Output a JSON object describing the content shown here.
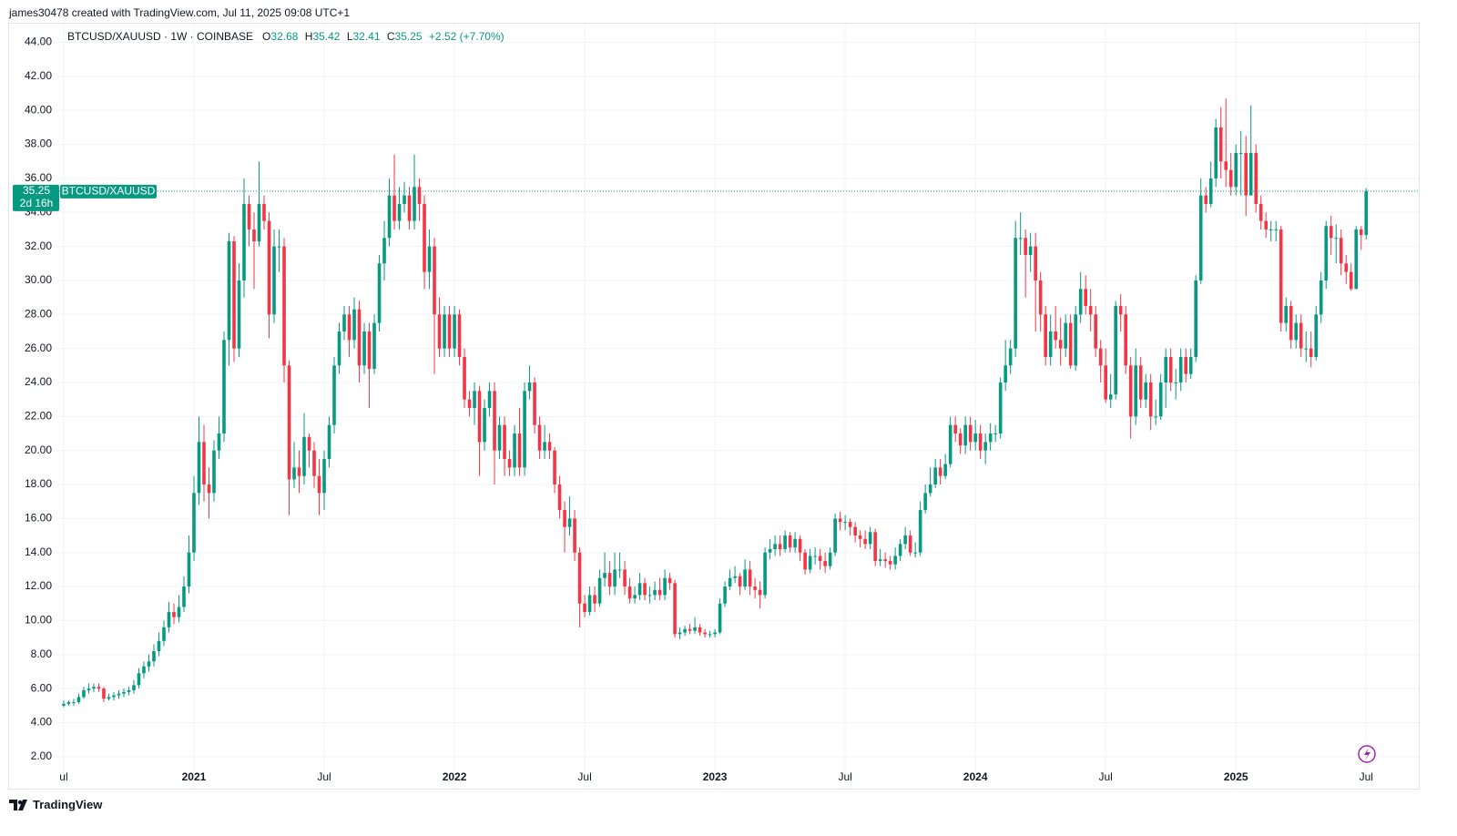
{
  "header": {
    "text": "james30478 created with TradingView.com, Jul 11, 2025 09:08 UTC+1"
  },
  "footer": {
    "brand": "TradingView"
  },
  "chart_data": {
    "type": "candlestick",
    "title": "BTCUSD/XAUUSD · 1W · COINBASE",
    "ohlc_labels": [
      "O",
      "H",
      "L",
      "C"
    ],
    "change_label": "+2.52 (+7.70%)",
    "price_tag": "BTCUSD/XAUUSD",
    "countdown": "2d 16h",
    "up_color": "#089981",
    "down_color": "#f23645",
    "grid": true,
    "xlim": [
      -10.9,
      270.5
    ],
    "xticks": [
      {
        "value": 0,
        "label": "ul"
      },
      {
        "value": 26,
        "label": "2021"
      },
      {
        "value": 52,
        "label": "Jul"
      },
      {
        "value": 78,
        "label": "2022"
      },
      {
        "value": 104,
        "label": "Jul"
      },
      {
        "value": 130,
        "label": "2023"
      },
      {
        "value": 156,
        "label": "Jul"
      },
      {
        "value": 182,
        "label": "2024"
      },
      {
        "value": 208,
        "label": "Jul"
      },
      {
        "value": 234,
        "label": "2025"
      },
      {
        "value": 260,
        "label": "Jul"
      }
    ],
    "ylim": [
      1.4,
      45.1
    ],
    "yticks": [
      {
        "value": 2,
        "label": "2.00"
      },
      {
        "value": 4,
        "label": "4.00"
      },
      {
        "value": 6,
        "label": "6.00"
      },
      {
        "value": 8,
        "label": "8.00"
      },
      {
        "value": 10,
        "label": "10.00"
      },
      {
        "value": 12,
        "label": "12.00"
      },
      {
        "value": 14,
        "label": "14.00"
      },
      {
        "value": 16,
        "label": "16.00"
      },
      {
        "value": 18,
        "label": "18.00"
      },
      {
        "value": 20,
        "label": "20.00"
      },
      {
        "value": 22,
        "label": "22.00"
      },
      {
        "value": 24,
        "label": "24.00"
      },
      {
        "value": 26,
        "label": "26.00"
      },
      {
        "value": 28,
        "label": "28.00"
      },
      {
        "value": 30,
        "label": "30.00"
      },
      {
        "value": 32,
        "label": "32.00"
      },
      {
        "value": 34,
        "label": "34.00"
      },
      {
        "value": 36,
        "label": "36.00"
      },
      {
        "value": 38,
        "label": "38.00"
      },
      {
        "value": 40,
        "label": "40.00"
      },
      {
        "value": 42,
        "label": "42.00"
      },
      {
        "value": 44,
        "label": "44.00"
      }
    ],
    "open": [
      5.0,
      5.1,
      5.2,
      5.2,
      5.5,
      5.9,
      6.0,
      6.1,
      6.0,
      5.4,
      5.5,
      5.6,
      5.7,
      5.8,
      5.9,
      6.2,
      6.9,
      7.3,
      7.6,
      8.2,
      8.8,
      9.6,
      10.5,
      10.2,
      10.8,
      12.0,
      14.0,
      17.5,
      20.5,
      18.0,
      17.5,
      20.0,
      21.0,
      26.5,
      32.3,
      26.0,
      30.0,
      34.5,
      33.0,
      32.3,
      34.5,
      33.5,
      28.0,
      32.0,
      32.0,
      25.0,
      18.3,
      19.0,
      18.5,
      20.8,
      20.0,
      18.5,
      17.5,
      19.5,
      21.5,
      25.0,
      27.0,
      28.0,
      26.5,
      28.3,
      25.0,
      27.0,
      24.8,
      27.5,
      31.0,
      32.5,
      35.0,
      33.5,
      34.5,
      35.0,
      33.5,
      35.5,
      34.5,
      30.5,
      32.0,
      28.0,
      26.0,
      28.0,
      26.0,
      28.0,
      25.5,
      23.0,
      22.5,
      23.5,
      20.5,
      22.5,
      23.5,
      20.0,
      21.5,
      19.5,
      19.0,
      21.0,
      19.0,
      23.5,
      24.0,
      21.5,
      20.0,
      20.5,
      20.0,
      18.0,
      16.5,
      15.5,
      16.0,
      14.0,
      11.0,
      10.5,
      11.5,
      11.0,
      12.5,
      12.8,
      12.0,
      13.0,
      13.0,
      12.0,
      11.3,
      11.5,
      12.2,
      11.5,
      11.5,
      11.8,
      11.5,
      12.5,
      12.2,
      9.2,
      9.3,
      9.5,
      9.4,
      9.6,
      9.3,
      9.2,
      9.2,
      9.3,
      11.0,
      12.0,
      12.5,
      12.6,
      12.0,
      13.0,
      12.0,
      11.8,
      11.5,
      14.0,
      14.2,
      14.5,
      14.2,
      15.0,
      14.3,
      14.8,
      14.0,
      13.0,
      13.8,
      13.8,
      13.5,
      13.2,
      14.0,
      16.0,
      15.8,
      15.8,
      15.5,
      15.0,
      14.8,
      14.5,
      15.2,
      13.5,
      13.6,
      13.5,
      13.3,
      13.8,
      14.5,
      15.0,
      14.0,
      14.0,
      16.5,
      17.5,
      18.0,
      19.0,
      18.5,
      19.2,
      21.5,
      21.0,
      20.3,
      21.5,
      20.5,
      21.0,
      20.0,
      20.5,
      21.0,
      21.0,
      24.0,
      25.0,
      26.0,
      32.5,
      32.5,
      31.5,
      32.0,
      30.0,
      28.0,
      25.5,
      27.0,
      26.5,
      26.0,
      27.5,
      25.0,
      28.0,
      29.5,
      28.5,
      28.0,
      26.0,
      25.0,
      23.0,
      23.3,
      28.5,
      28.0,
      25.0,
      22.0,
      25.0,
      23.0,
      24.0,
      22.0,
      22.0,
      24.0,
      25.5,
      24.0,
      24.0,
      25.5,
      24.5,
      25.5,
      30.0,
      35.0,
      34.5,
      36.0,
      39.0,
      37.0,
      36.5,
      35.5,
      37.5,
      37.5,
      35.0,
      37.5,
      34.5,
      33.5,
      33.0,
      33.0,
      33.0,
      27.5,
      28.5,
      26.5,
      27.5,
      26.0,
      26.0,
      25.5,
      28.0,
      30.0,
      33.2,
      32.5,
      32.5,
      31.0,
      30.5,
      29.5,
      33.0,
      32.68
    ],
    "high": [
      5.3,
      5.3,
      5.4,
      5.7,
      6.1,
      6.3,
      6.3,
      6.3,
      6.1,
      5.7,
      5.8,
      5.9,
      6.0,
      6.1,
      6.5,
      7.2,
      7.6,
      8.0,
      8.6,
      9.3,
      10.0,
      11.1,
      11.0,
      11.5,
      12.6,
      15.0,
      18.5,
      22.0,
      21.5,
      19.0,
      20.6,
      22.0,
      27.0,
      32.8,
      32.6,
      31.0,
      36.0,
      35.0,
      34.0,
      37.0,
      35.0,
      34.0,
      33.0,
      33.0,
      32.5,
      25.3,
      20.5,
      20.0,
      22.2,
      21.0,
      20.5,
      19.5,
      20.0,
      22.0,
      25.5,
      27.5,
      28.5,
      28.5,
      29.0,
      28.8,
      27.5,
      27.5,
      28.0,
      31.5,
      33.5,
      36.0,
      37.4,
      35.5,
      35.8,
      35.5,
      37.4,
      36.0,
      35.0,
      33.0,
      32.5,
      29.0,
      28.5,
      28.5,
      28.5,
      28.3,
      26.0,
      23.5,
      24.0,
      23.8,
      23.0,
      24.0,
      24.0,
      22.0,
      22.0,
      20.0,
      21.5,
      22.5,
      24.0,
      25.0,
      24.3,
      22.0,
      21.5,
      21.0,
      20.2,
      18.5,
      17.0,
      17.3,
      16.5,
      14.3,
      11.5,
      12.0,
      12.0,
      13.0,
      14.0,
      13.5,
      14.0,
      14.0,
      13.5,
      12.5,
      12.0,
      12.8,
      12.5,
      12.0,
      12.3,
      12.5,
      13.0,
      12.8,
      12.4,
      9.6,
      9.7,
      9.8,
      10.2,
      9.8,
      9.5,
      9.4,
      9.5,
      11.3,
      12.3,
      13.0,
      13.2,
      12.8,
      13.6,
      13.5,
      12.5,
      12.3,
      14.3,
      14.8,
      15.0,
      15.0,
      15.3,
      15.2,
      15.2,
      15.0,
      14.2,
      14.2,
      14.3,
      14.2,
      14.0,
      14.3,
      16.3,
      16.4,
      16.2,
      16.0,
      15.8,
      15.3,
      15.3,
      15.5,
      15.4,
      14.2,
      14.0,
      13.8,
      14.3,
      14.8,
      15.5,
      15.3,
      14.6,
      17.0,
      18.0,
      19.0,
      19.5,
      19.5,
      19.8,
      22.0,
      22.0,
      21.3,
      22.0,
      22.0,
      21.8,
      21.5,
      21.0,
      21.6,
      21.5,
      24.3,
      26.5,
      26.5,
      33.5,
      34.0,
      33.0,
      32.8,
      32.8,
      30.5,
      28.5,
      28.0,
      28.5,
      27.8,
      28.0,
      28.0,
      28.5,
      30.5,
      30.3,
      29.5,
      28.5,
      26.5,
      26.0,
      24.5,
      28.8,
      29.2,
      28.5,
      25.5,
      26.0,
      25.5,
      24.5,
      24.5,
      23.0,
      24.5,
      26.0,
      26.0,
      24.8,
      26.0,
      26.0,
      26.0,
      30.3,
      36.0,
      35.5,
      37.0,
      39.5,
      40.2,
      40.7,
      37.5,
      38.0,
      38.8,
      38.5,
      40.3,
      38.0,
      35.0,
      34.0,
      33.5,
      33.5,
      33.2,
      29.0,
      28.8,
      28.0,
      28.0,
      27.0,
      27.0,
      28.5,
      30.5,
      33.5,
      33.8,
      33.3,
      33.0,
      31.5,
      31.0,
      33.2,
      33.2,
      35.42
    ],
    "low": [
      4.9,
      5.0,
      5.0,
      5.1,
      5.4,
      5.7,
      5.8,
      5.8,
      5.2,
      5.3,
      5.3,
      5.4,
      5.5,
      5.6,
      5.7,
      6.0,
      6.6,
      7.0,
      7.3,
      7.9,
      8.5,
      9.3,
      9.8,
      9.9,
      10.5,
      11.6,
      13.5,
      16.8,
      17.0,
      16.0,
      17.0,
      19.5,
      20.5,
      25.0,
      25.2,
      25.5,
      29.0,
      32.0,
      29.5,
      32.0,
      33.0,
      26.6,
      27.5,
      30.5,
      24.0,
      16.2,
      17.8,
      17.5,
      18.0,
      19.0,
      17.8,
      16.2,
      16.5,
      19.0,
      21.0,
      24.5,
      26.5,
      25.5,
      26.0,
      24.0,
      24.5,
      22.5,
      24.5,
      27.0,
      30.0,
      32.0,
      33.0,
      33.0,
      34.0,
      33.0,
      33.0,
      33.5,
      29.5,
      29.5,
      24.5,
      25.5,
      25.5,
      25.5,
      25.5,
      25.0,
      22.5,
      22.0,
      21.5,
      18.5,
      20.0,
      22.0,
      18.0,
      19.5,
      18.5,
      18.5,
      18.5,
      18.5,
      18.5,
      23.0,
      21.0,
      19.5,
      19.5,
      19.5,
      17.5,
      16.0,
      14.0,
      15.0,
      13.5,
      9.6,
      10.2,
      10.3,
      10.5,
      10.8,
      12.0,
      11.5,
      11.5,
      12.5,
      11.5,
      11.0,
      11.0,
      11.2,
      11.2,
      11.0,
      11.2,
      11.2,
      11.2,
      11.8,
      9.0,
      8.9,
      9.1,
      9.2,
      9.2,
      9.1,
      9.0,
      9.0,
      9.0,
      9.2,
      10.8,
      11.8,
      12.2,
      11.5,
      11.8,
      11.5,
      11.3,
      10.7,
      11.3,
      13.6,
      13.8,
      13.8,
      14.0,
      14.0,
      14.0,
      13.5,
      12.7,
      12.8,
      13.3,
      13.0,
      12.8,
      13.0,
      13.8,
      15.3,
      15.3,
      15.0,
      14.6,
      14.3,
      14.2,
      14.2,
      13.2,
      13.2,
      13.1,
      13.0,
      13.0,
      13.5,
      14.2,
      13.8,
      13.7,
      13.8,
      16.3,
      17.3,
      17.8,
      18.0,
      18.3,
      19.0,
      20.5,
      19.8,
      19.8,
      20.0,
      20.0,
      19.5,
      19.2,
      20.0,
      20.5,
      20.7,
      23.5,
      24.5,
      25.5,
      31.5,
      29.0,
      30.5,
      27.0,
      27.0,
      25.0,
      25.0,
      26.0,
      25.0,
      25.5,
      24.8,
      24.7,
      27.5,
      28.0,
      27.0,
      25.5,
      24.0,
      22.8,
      22.5,
      23.0,
      27.0,
      24.5,
      20.7,
      21.5,
      22.5,
      22.5,
      21.2,
      21.5,
      21.8,
      22.5,
      23.5,
      23.0,
      23.5,
      24.0,
      24.2,
      25.2,
      29.8,
      34.0,
      34.3,
      35.5,
      36.0,
      35.5,
      35.0,
      35.0,
      35.0,
      33.8,
      35.0,
      34.0,
      33.0,
      32.5,
      32.3,
      32.3,
      27.0,
      27.0,
      26.0,
      26.0,
      25.5,
      25.2,
      24.9,
      25.3,
      27.5,
      29.5,
      31.5,
      31.0,
      30.3,
      29.8,
      29.4,
      29.5,
      31.8,
      32.41
    ],
    "close": [
      5.1,
      5.2,
      5.2,
      5.5,
      5.9,
      6.0,
      6.1,
      6.0,
      5.4,
      5.5,
      5.6,
      5.7,
      5.8,
      5.9,
      6.2,
      6.9,
      7.3,
      7.6,
      8.2,
      8.8,
      9.6,
      10.5,
      10.2,
      10.8,
      12.0,
      14.0,
      17.5,
      20.5,
      18.0,
      17.5,
      20.0,
      21.0,
      26.5,
      32.3,
      26.0,
      30.0,
      34.5,
      33.0,
      32.3,
      34.5,
      33.5,
      28.0,
      32.0,
      32.0,
      25.0,
      18.3,
      19.0,
      18.5,
      20.8,
      20.0,
      18.5,
      17.5,
      19.5,
      21.5,
      25.0,
      27.0,
      28.0,
      26.5,
      28.3,
      25.0,
      27.0,
      24.8,
      27.5,
      31.0,
      32.5,
      35.0,
      33.5,
      34.5,
      35.0,
      33.5,
      35.5,
      34.5,
      30.5,
      32.0,
      28.0,
      26.0,
      28.0,
      26.0,
      28.0,
      25.5,
      23.0,
      22.5,
      23.5,
      20.5,
      22.5,
      23.5,
      20.0,
      21.5,
      19.5,
      19.0,
      21.0,
      19.0,
      23.5,
      24.0,
      21.5,
      20.0,
      20.5,
      20.0,
      18.0,
      16.5,
      15.5,
      16.0,
      14.0,
      11.0,
      10.5,
      11.5,
      11.0,
      12.5,
      12.8,
      12.0,
      13.0,
      13.0,
      12.0,
      11.3,
      11.5,
      12.2,
      11.5,
      11.5,
      11.8,
      11.5,
      12.5,
      12.2,
      9.2,
      9.3,
      9.5,
      9.4,
      9.6,
      9.3,
      9.2,
      9.2,
      9.3,
      11.0,
      12.0,
      12.5,
      12.6,
      12.0,
      13.0,
      12.0,
      11.8,
      11.5,
      14.0,
      14.2,
      14.5,
      14.2,
      15.0,
      14.3,
      14.8,
      14.0,
      13.0,
      13.8,
      13.8,
      13.5,
      13.2,
      14.0,
      16.0,
      15.8,
      15.8,
      15.5,
      15.0,
      14.8,
      14.5,
      15.2,
      13.5,
      13.6,
      13.5,
      13.3,
      13.8,
      14.5,
      15.0,
      14.0,
      14.0,
      16.5,
      17.5,
      18.0,
      19.0,
      18.5,
      19.2,
      21.5,
      21.0,
      20.3,
      21.5,
      20.5,
      21.0,
      20.0,
      20.5,
      21.0,
      21.0,
      24.0,
      25.0,
      26.0,
      32.5,
      32.5,
      31.5,
      32.0,
      30.0,
      28.0,
      25.5,
      27.0,
      26.5,
      26.0,
      27.5,
      25.0,
      28.0,
      29.5,
      28.5,
      28.0,
      26.0,
      25.0,
      23.0,
      23.3,
      28.5,
      28.0,
      25.0,
      22.0,
      25.0,
      23.0,
      24.0,
      22.0,
      22.0,
      24.0,
      25.5,
      24.0,
      24.0,
      25.5,
      24.5,
      25.5,
      30.0,
      35.0,
      34.5,
      36.0,
      39.0,
      37.0,
      36.5,
      35.5,
      37.5,
      37.5,
      35.0,
      37.5,
      34.5,
      33.5,
      33.0,
      33.0,
      33.0,
      27.5,
      28.5,
      26.5,
      27.5,
      26.0,
      26.0,
      25.5,
      28.0,
      30.0,
      33.2,
      32.5,
      32.5,
      31.0,
      30.5,
      29.5,
      33.0,
      32.68,
      35.25
    ]
  }
}
